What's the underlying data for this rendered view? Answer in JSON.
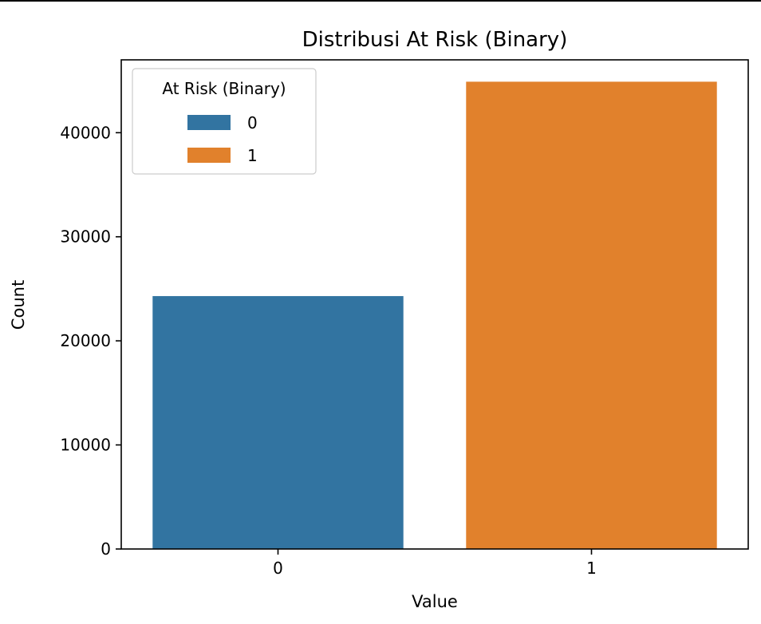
{
  "chart_data": {
    "type": "bar",
    "title": "Distribusi At Risk (Binary)",
    "xlabel": "Value",
    "ylabel": "Count",
    "categories": [
      "0",
      "1"
    ],
    "values": [
      24300,
      44900
    ],
    "colors": [
      "#3274a1",
      "#e1812c"
    ],
    "ylim": [
      0,
      47000
    ],
    "yticks": [
      0,
      10000,
      20000,
      30000,
      40000
    ],
    "ytick_labels": [
      "0",
      "10000",
      "20000",
      "30000",
      "40000"
    ],
    "grid": false,
    "legend": {
      "title": "At Risk (Binary)",
      "placement": "top-left",
      "entries": [
        {
          "label": "0",
          "color": "#3274a1"
        },
        {
          "label": "1",
          "color": "#e1812c"
        }
      ]
    }
  }
}
